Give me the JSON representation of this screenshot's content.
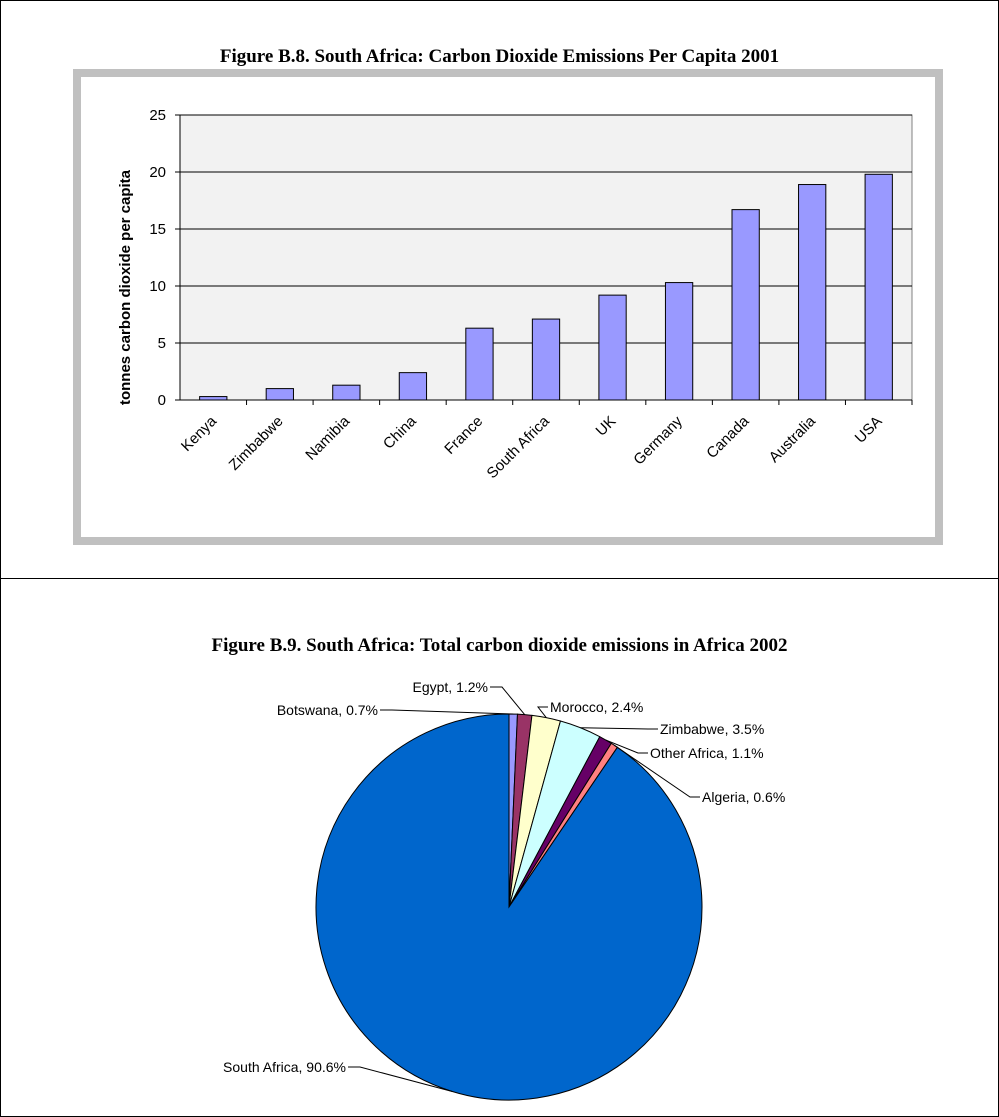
{
  "figures": {
    "bar_title": "Figure B.8. South Africa: Carbon Dioxide Emissions Per Capita 2001",
    "pie_title": "Figure B.9. South Africa: Total carbon dioxide emissions in Africa 2002"
  },
  "chart_data": [
    {
      "type": "bar",
      "title": "Figure B.8. South Africa: Carbon Dioxide Emissions Per Capita 2001",
      "xlabel": "",
      "ylabel": "tonnes carbon dioxide per capita",
      "categories": [
        "Kenya",
        "Zimbabwe",
        "Namibia",
        "China",
        "France",
        "South Africa",
        "UK",
        "Germany",
        "Canada",
        "Australia",
        "USA"
      ],
      "values": [
        0.3,
        1.0,
        1.3,
        2.4,
        6.3,
        7.1,
        9.2,
        10.3,
        16.7,
        18.9,
        19.8
      ],
      "ylim": [
        0,
        25
      ],
      "yticks": [
        0,
        5,
        10,
        15,
        20,
        25
      ],
      "grid": true,
      "colors": {
        "bar": "#9999ff",
        "plot_bg": "#f2f2f2",
        "frame": "#c0c0c0"
      }
    },
    {
      "type": "pie",
      "title": "Figure B.9. South Africa: Total carbon dioxide emissions in Africa 2002",
      "slices": [
        {
          "label": "Botswana",
          "value": 0.7,
          "text": "Botswana, 0.7%",
          "color": "#9999ff"
        },
        {
          "label": "Egypt",
          "value": 1.2,
          "text": "Egypt, 1.2%",
          "color": "#993366"
        },
        {
          "label": "Morocco",
          "value": 2.4,
          "text": "Morocco, 2.4%",
          "color": "#ffffcc"
        },
        {
          "label": "Zimbabwe",
          "value": 3.5,
          "text": "Zimbabwe, 3.5%",
          "color": "#ccffff"
        },
        {
          "label": "Other Africa",
          "value": 1.1,
          "text": "Other Africa, 1.1%",
          "color": "#660066"
        },
        {
          "label": "Algeria",
          "value": 0.6,
          "text": "Algeria, 0.6%",
          "color": "#ff8080"
        },
        {
          "label": "South Africa",
          "value": 90.6,
          "text": "South Africa, 90.6%",
          "color": "#0066cc"
        }
      ]
    }
  ]
}
